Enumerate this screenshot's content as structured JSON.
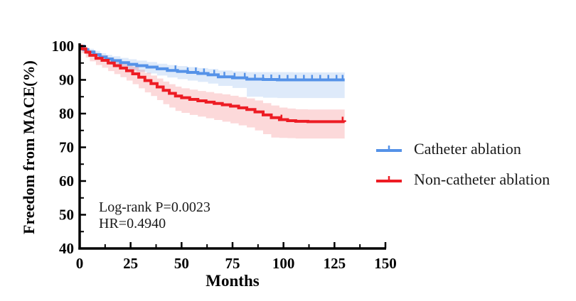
{
  "chart_data": {
    "type": "line",
    "subtype": "kaplan-meier-step",
    "title": "",
    "xlabel": "Months",
    "ylabel": "Freedom from MACE(%)",
    "xlim": [
      0,
      150
    ],
    "ylim": [
      40,
      100
    ],
    "x_major_ticks": [
      0,
      25,
      50,
      75,
      100,
      125,
      150
    ],
    "x_minor_ticks": [
      12.5,
      37.5,
      62.5,
      87.5,
      112.5,
      137.5
    ],
    "y_major_ticks": [
      40,
      50,
      60,
      70,
      80,
      90,
      100
    ],
    "y_minor_ticks": [
      45,
      55,
      65,
      75,
      85,
      95
    ],
    "grid": false,
    "legend_position": "right",
    "annotation": {
      "line1": "Log-rank P=0.0023",
      "line2": "HR=0.4940"
    },
    "axis_color": "#000000",
    "series": [
      {
        "name": "Catheter ablation",
        "color": "#5592E8",
        "band_color": "rgba(92,148,232,0.20)",
        "x": [
          0,
          2,
          4,
          7,
          10,
          13,
          16,
          20,
          24,
          28,
          33,
          38,
          43,
          48,
          53,
          58,
          63,
          68,
          75,
          82,
          90,
          97,
          105,
          130
        ],
        "y": [
          100,
          99.0,
          98.3,
          97.5,
          96.8,
          96.2,
          95.7,
          95.1,
          94.6,
          94.2,
          93.8,
          93.3,
          92.8,
          92.5,
          92.2,
          91.9,
          91.5,
          90.9,
          90.6,
          90.2,
          90.1,
          90.0,
          90.0,
          90.0
        ],
        "ci_upper": [
          100,
          99.6,
          99.2,
          98.6,
          97.9,
          97.4,
          97.0,
          96.5,
          96.1,
          95.7,
          95.3,
          94.8,
          94.4,
          94.1,
          93.8,
          93.5,
          93.2,
          92.8,
          92.5,
          92.3,
          92.3,
          92.3,
          92.2,
          92.2
        ],
        "ci_lower": [
          100,
          98.0,
          97.0,
          96.2,
          95.4,
          94.8,
          94.2,
          93.5,
          92.9,
          92.4,
          91.9,
          91.3,
          90.7,
          90.2,
          89.8,
          89.4,
          88.9,
          88.2,
          87.6,
          85.0,
          84.7,
          84.6,
          84.6,
          84.6
        ],
        "censor_x": [
          47,
          53,
          57,
          61,
          66,
          71,
          76,
          81,
          86,
          90,
          94,
          98,
          102,
          106,
          110,
          114,
          118,
          122,
          126,
          129
        ]
      },
      {
        "name": "Non-catheter ablation",
        "color": "#ED1C24",
        "band_color": "rgba(237,28,36,0.17)",
        "x": [
          0,
          1,
          3,
          5,
          8,
          11,
          14,
          17,
          20,
          23,
          26,
          29,
          32,
          35,
          38,
          41,
          44,
          47,
          50,
          54,
          58,
          62,
          66,
          70,
          74,
          78,
          82,
          86,
          90,
          94,
          98,
          102,
          106,
          112,
          130
        ],
        "y": [
          100,
          99.2,
          98.2,
          97.3,
          96.4,
          95.8,
          95.0,
          94.2,
          93.5,
          92.7,
          91.8,
          90.8,
          89.8,
          88.9,
          87.9,
          86.9,
          86.0,
          85.2,
          84.7,
          84.2,
          83.8,
          83.4,
          83.0,
          82.6,
          82.2,
          81.7,
          81.2,
          80.5,
          79.6,
          78.8,
          78.2,
          77.9,
          77.7,
          77.6,
          77.5
        ],
        "ci_upper": [
          100,
          99.7,
          99.2,
          98.6,
          97.8,
          97.3,
          96.6,
          96.0,
          95.4,
          94.7,
          93.9,
          93.0,
          92.1,
          91.3,
          90.4,
          89.5,
          88.7,
          88.0,
          87.5,
          87.1,
          86.7,
          86.4,
          86.0,
          85.7,
          85.3,
          84.9,
          84.5,
          83.9,
          83.1,
          82.4,
          81.8,
          81.5,
          81.3,
          81.2,
          81.1
        ],
        "ci_lower": [
          100,
          97.9,
          96.6,
          95.5,
          94.4,
          93.6,
          92.6,
          91.7,
          90.8,
          89.8,
          88.7,
          87.5,
          86.3,
          85.2,
          84.0,
          82.8,
          81.8,
          80.8,
          80.2,
          79.6,
          79.1,
          78.6,
          78.1,
          77.6,
          77.1,
          76.5,
          75.9,
          75.0,
          73.9,
          72.9,
          72.8,
          72.7,
          72.6,
          72.6,
          72.5
        ],
        "censor_x": [
          99,
          129
        ]
      }
    ]
  }
}
